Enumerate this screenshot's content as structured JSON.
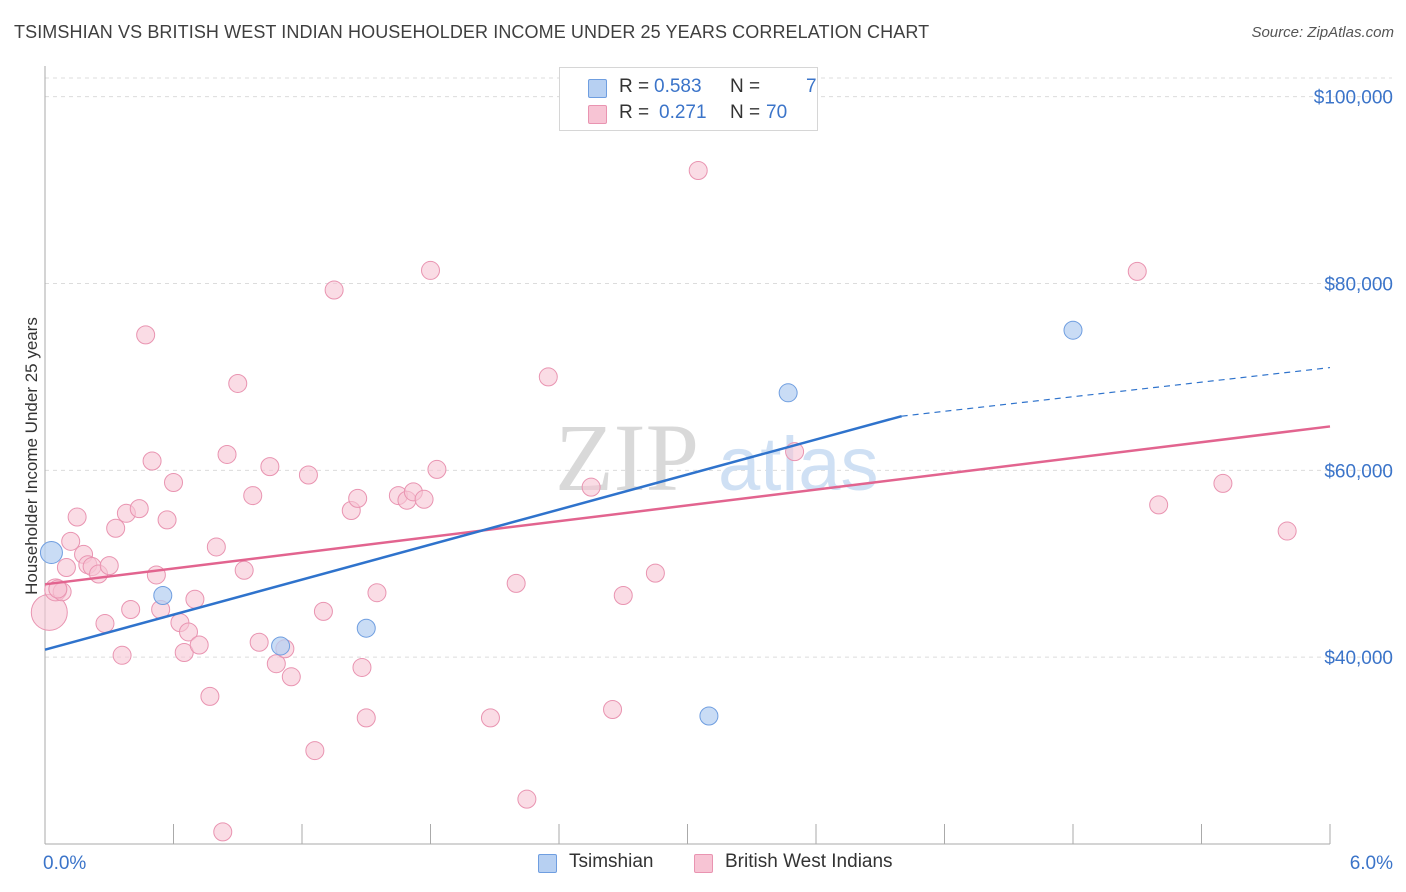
{
  "header": {
    "title": "TSIMSHIAN VS BRITISH WEST INDIAN HOUSEHOLDER INCOME UNDER 25 YEARS CORRELATION CHART",
    "source": "Source: ZipAtlas.com"
  },
  "watermark": {
    "zip": "ZIP",
    "atlas": "atlas"
  },
  "legend": {
    "r_label": "R =",
    "n_label": "N =",
    "rows": [
      {
        "r": "0.583",
        "n": "7"
      },
      {
        "r": "0.271",
        "n": "70"
      }
    ]
  },
  "colors": {
    "tsimshian_fill": "#b7d0f2",
    "tsimshian_stroke": "#6f9ee0",
    "tsimshian_line": "#2f73cc",
    "bwi_fill": "#f7c4d4",
    "bwi_stroke": "#e994b1",
    "bwi_line": "#e2648f",
    "axis_label": "#3b74c9"
  },
  "chart_data": {
    "type": "scatter",
    "title": "TSIMSHIAN VS BRITISH WEST INDIAN HOUSEHOLDER INCOME UNDER 25 YEARS CORRELATION CHART",
    "xlabel": "",
    "ylabel": "Householder Income Under 25 years",
    "xlim": [
      0,
      6
    ],
    "ylim": [
      20000,
      102000
    ],
    "x_tick_labels": [
      "0.0%",
      "6.0%"
    ],
    "y_tick_labels": [
      {
        "value": 40000,
        "label": "$40,000"
      },
      {
        "value": 60000,
        "label": "$60,000"
      },
      {
        "value": 80000,
        "label": "$80,000"
      },
      {
        "value": 100000,
        "label": "$100,000"
      }
    ],
    "grid": true,
    "legend_position": "top-center",
    "series": [
      {
        "name": "Tsimshian",
        "r": 0.583,
        "n": 7,
        "points": [
          [
            0.03,
            51200
          ],
          [
            0.55,
            46600
          ],
          [
            1.1,
            41200
          ],
          [
            1.5,
            43100
          ],
          [
            3.1,
            33700
          ],
          [
            3.47,
            68300
          ],
          [
            4.8,
            75000
          ]
        ],
        "trend": {
          "x0": 0,
          "y0": 40800,
          "x1": 4.0,
          "y1": 65800,
          "dash_to_x": 6.0,
          "dash_to_y": 71000
        }
      },
      {
        "name": "British West Indians",
        "r": 0.271,
        "n": 70,
        "points": [
          [
            0.02,
            44800
          ],
          [
            0.05,
            47200
          ],
          [
            0.08,
            47000
          ],
          [
            0.1,
            49600
          ],
          [
            0.12,
            52400
          ],
          [
            0.15,
            55000
          ],
          [
            0.18,
            51000
          ],
          [
            0.2,
            49900
          ],
          [
            0.22,
            49700
          ],
          [
            0.25,
            48900
          ],
          [
            0.28,
            43600
          ],
          [
            0.3,
            49800
          ],
          [
            0.33,
            53800
          ],
          [
            0.36,
            40200
          ],
          [
            0.38,
            55400
          ],
          [
            0.4,
            45100
          ],
          [
            0.44,
            55900
          ],
          [
            0.5,
            61000
          ],
          [
            0.52,
            48800
          ],
          [
            0.54,
            45100
          ],
          [
            0.57,
            54700
          ],
          [
            0.6,
            58700
          ],
          [
            0.63,
            43700
          ],
          [
            0.65,
            40500
          ],
          [
            0.67,
            42700
          ],
          [
            0.7,
            46200
          ],
          [
            0.72,
            41300
          ],
          [
            0.77,
            35800
          ],
          [
            0.8,
            51800
          ],
          [
            0.83,
            21300
          ],
          [
            0.85,
            61700
          ],
          [
            0.9,
            69300
          ],
          [
            0.93,
            49300
          ],
          [
            0.97,
            57300
          ],
          [
            1.0,
            41600
          ],
          [
            1.05,
            60400
          ],
          [
            1.08,
            39300
          ],
          [
            1.12,
            40900
          ],
          [
            1.15,
            37900
          ],
          [
            1.23,
            59500
          ],
          [
            1.26,
            30000
          ],
          [
            1.3,
            44900
          ],
          [
            1.35,
            79300
          ],
          [
            1.43,
            55700
          ],
          [
            1.46,
            57000
          ],
          [
            1.48,
            38900
          ],
          [
            1.5,
            33500
          ],
          [
            1.55,
            46900
          ],
          [
            1.65,
            57300
          ],
          [
            1.69,
            56800
          ],
          [
            1.72,
            57700
          ],
          [
            1.77,
            56900
          ],
          [
            1.8,
            81400
          ],
          [
            1.83,
            60100
          ],
          [
            2.08,
            33500
          ],
          [
            2.2,
            47900
          ],
          [
            2.25,
            24800
          ],
          [
            2.35,
            70000
          ],
          [
            2.55,
            58200
          ],
          [
            2.65,
            34400
          ],
          [
            2.7,
            46600
          ],
          [
            2.85,
            49000
          ],
          [
            3.05,
            92100
          ],
          [
            3.5,
            62000
          ],
          [
            0.47,
            74500
          ],
          [
            5.1,
            81300
          ],
          [
            5.2,
            56300
          ],
          [
            5.5,
            58600
          ],
          [
            5.8,
            53500
          ],
          [
            0.06,
            47300
          ]
        ],
        "trend": {
          "x0": 0,
          "y0": 47800,
          "x1": 6.0,
          "y1": 64700
        }
      }
    ]
  },
  "bottom_legend": [
    {
      "label": "Tsimshian"
    },
    {
      "label": "British West Indians"
    }
  ]
}
